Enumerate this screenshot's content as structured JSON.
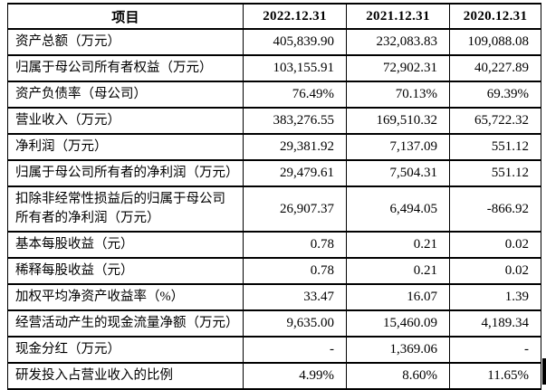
{
  "table": {
    "columns": [
      "项目",
      "2022.12.31",
      "2021.12.31",
      "2020.12.31"
    ],
    "rows": [
      {
        "label": "资产总额（万元）",
        "values": [
          "405,839.90",
          "232,083.83",
          "109,088.08"
        ]
      },
      {
        "label": "归属于母公司所有者权益（万元）",
        "values": [
          "103,155.91",
          "72,902.31",
          "40,227.89"
        ]
      },
      {
        "label": "资产负债率（母公司）",
        "values": [
          "76.49%",
          "70.13%",
          "69.39%"
        ]
      },
      {
        "label": "营业收入（万元）",
        "values": [
          "383,276.55",
          "169,510.32",
          "65,722.32"
        ]
      },
      {
        "label": "净利润（万元）",
        "values": [
          "29,381.92",
          "7,137.09",
          "551.12"
        ]
      },
      {
        "label": "归属于母公司所有者的净利润（万元）",
        "values": [
          "29,479.61",
          "7,504.31",
          "551.12"
        ]
      },
      {
        "label": "扣除非经常性损益后的归属于母公司所有者的净利润（万元）",
        "values": [
          "26,907.37",
          "6,494.05",
          "-866.92"
        ]
      },
      {
        "label": "基本每股收益（元）",
        "values": [
          "0.78",
          "0.21",
          "0.02"
        ]
      },
      {
        "label": "稀释每股收益（元）",
        "values": [
          "0.78",
          "0.21",
          "0.02"
        ]
      },
      {
        "label": "加权平均净资产收益率（%）",
        "values": [
          "33.47",
          "16.07",
          "1.39"
        ]
      },
      {
        "label": "经营活动产生的现金流量净额（万元）",
        "values": [
          "9,635.00",
          "15,460.09",
          "4,189.34"
        ]
      },
      {
        "label": "现金分红（万元）",
        "values": [
          "-",
          "1,369.06",
          "-"
        ]
      },
      {
        "label": "研发投入占营业收入的比例",
        "values": [
          "4.99%",
          "8.60%",
          "11.65%"
        ]
      }
    ]
  },
  "chart_data": {
    "type": "table",
    "title": "",
    "columns": [
      "项目",
      "2022.12.31",
      "2021.12.31",
      "2020.12.31"
    ],
    "rows": [
      [
        "资产总额（万元）",
        "405,839.90",
        "232,083.83",
        "109,088.08"
      ],
      [
        "归属于母公司所有者权益（万元）",
        "103,155.91",
        "72,902.31",
        "40,227.89"
      ],
      [
        "资产负债率（母公司）",
        "76.49%",
        "70.13%",
        "69.39%"
      ],
      [
        "营业收入（万元）",
        "383,276.55",
        "169,510.32",
        "65,722.32"
      ],
      [
        "净利润（万元）",
        "29,381.92",
        "7,137.09",
        "551.12"
      ],
      [
        "归属于母公司所有者的净利润（万元）",
        "29,479.61",
        "7,504.31",
        "551.12"
      ],
      [
        "扣除非经常性损益后的归属于母公司所有者的净利润（万元）",
        "26,907.37",
        "6,494.05",
        "-866.92"
      ],
      [
        "基本每股收益（元）",
        "0.78",
        "0.21",
        "0.02"
      ],
      [
        "稀释每股收益（元）",
        "0.78",
        "0.21",
        "0.02"
      ],
      [
        "加权平均净资产收益率（%）",
        "33.47",
        "16.07",
        "1.39"
      ],
      [
        "经营活动产生的现金流量净额（万元）",
        "9,635.00",
        "15,460.09",
        "4,189.34"
      ],
      [
        "现金分红（万元）",
        "-",
        "1,369.06",
        "-"
      ],
      [
        "研发投入占营业收入的比例",
        "4.99%",
        "8.60%",
        "11.65%"
      ]
    ]
  },
  "colors": {
    "text": "#000000",
    "border": "#000000",
    "background": "#ffffff"
  }
}
